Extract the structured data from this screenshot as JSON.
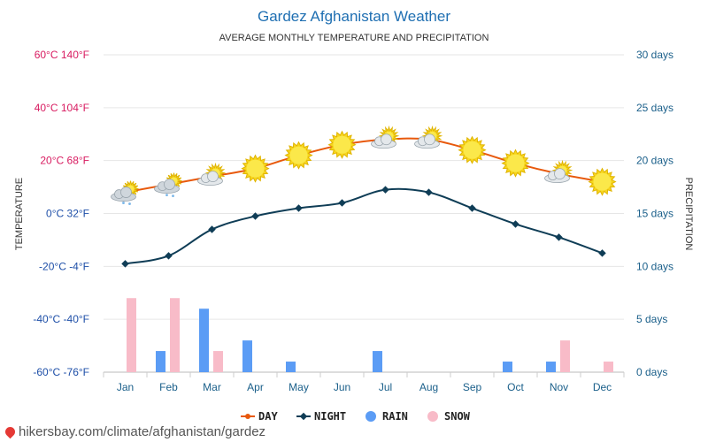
{
  "chart_data": {
    "type": "line+bar",
    "title": "Gardez Afghanistan Weather",
    "subtitle": "AVERAGE MONTHLY TEMPERATURE AND PRECIPITATION",
    "left_axis_title": "TEMPERATURE",
    "right_axis_title": "PRECIPITATION",
    "categories": [
      "Jan",
      "Feb",
      "Mar",
      "Apr",
      "May",
      "Jun",
      "Jul",
      "Aug",
      "Sep",
      "Oct",
      "Nov",
      "Dec"
    ],
    "left_ticks": [
      {
        "c": 60,
        "label": "60°C 140°F"
      },
      {
        "c": 40,
        "label": "40°C 104°F"
      },
      {
        "c": 20,
        "label": "20°C 68°F"
      },
      {
        "c": 0,
        "label": "0°C 32°F"
      },
      {
        "c": -20,
        "label": "-20°C -4°F"
      },
      {
        "c": -40,
        "label": "-40°C -40°F"
      },
      {
        "c": -60,
        "label": "-60°C -76°F"
      }
    ],
    "right_ticks": [
      {
        "d": 30,
        "label": "30 days"
      },
      {
        "d": 25,
        "label": "25 days"
      },
      {
        "d": 20,
        "label": "20 days"
      },
      {
        "d": 15,
        "label": "15 days"
      },
      {
        "d": 10,
        "label": "10 days"
      },
      {
        "d": 5,
        "label": "5 days"
      },
      {
        "d": 0,
        "label": "0 days"
      }
    ],
    "ylim_temperature_c": [
      -60,
      60
    ],
    "ylim_precipitation_days": [
      0,
      30
    ],
    "series": [
      {
        "name": "DAY",
        "kind": "line",
        "axis": "temperature",
        "color": "#e8590c",
        "values": [
          8,
          11,
          14,
          17,
          22,
          26,
          28,
          28,
          24,
          19,
          15,
          12
        ]
      },
      {
        "name": "NIGHT",
        "kind": "line",
        "axis": "temperature",
        "color": "#0f3d56",
        "values": [
          -19,
          -16,
          -6,
          -1,
          2,
          4,
          9,
          8,
          2,
          -4,
          -9,
          -15
        ]
      },
      {
        "name": "RAIN",
        "kind": "bar",
        "axis": "precipitation",
        "color": "#5b9cf5",
        "values": [
          0,
          2,
          6,
          3,
          1,
          0,
          2,
          0,
          0,
          1,
          1,
          0
        ]
      },
      {
        "name": "SNOW",
        "kind": "bar",
        "axis": "precipitation",
        "color": "#f8bbc8",
        "values": [
          7,
          7,
          2,
          0,
          0,
          0,
          0,
          0,
          0,
          0,
          3,
          1
        ]
      }
    ],
    "weather_icons": [
      "snow-cloud",
      "snow-cloud",
      "sun-cloud",
      "sun",
      "sun",
      "sun",
      "sun-cloud",
      "sun-cloud",
      "sun",
      "sun",
      "sun-cloud",
      "sun"
    ],
    "grid": true,
    "legend_position": "bottom-center"
  },
  "source_text": "hikersbay.com/climate/afghanistan/gardez"
}
